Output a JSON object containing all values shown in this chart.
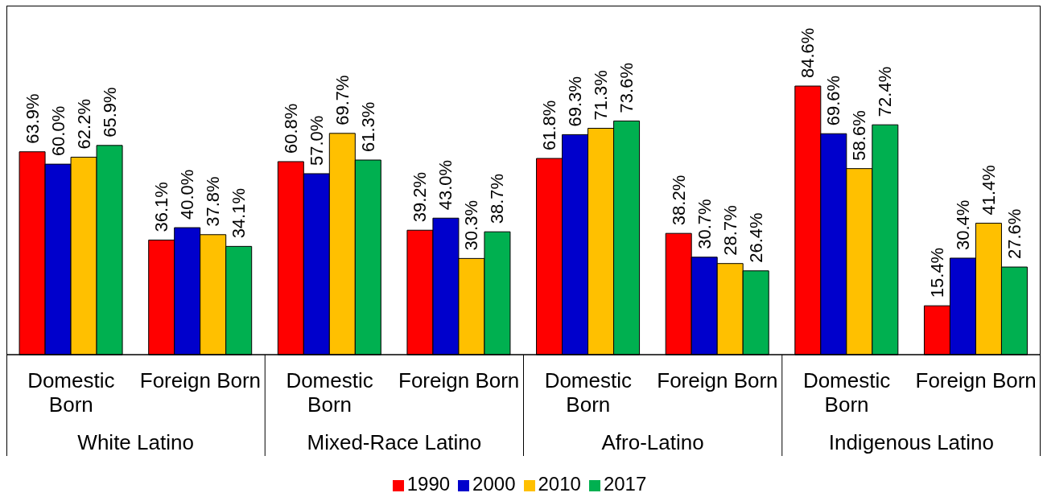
{
  "chart_data": {
    "type": "bar",
    "categories": [
      "Domestic Born",
      "Foreign Born",
      "Domestic Born",
      "Foreign Born",
      "Domestic Born",
      "Foreign Born",
      "Domestic Born",
      "Foreign Born"
    ],
    "series": [
      {
        "name": "1990",
        "color": "#ff0000",
        "values": [
          63.9,
          36.1,
          60.8,
          39.2,
          61.8,
          38.2,
          84.6,
          15.4
        ],
        "value_labels": [
          "63.9%",
          "36.1%",
          "60.8%",
          "39.2%",
          "61.8%",
          "38.2%",
          "84.6%",
          "15.4%"
        ]
      },
      {
        "name": "2000",
        "color": "#0000cc",
        "values": [
          60.0,
          40.0,
          57.0,
          43.0,
          69.3,
          30.7,
          69.6,
          30.4
        ],
        "value_labels": [
          "60.0%",
          "40.0%",
          "57.0%",
          "43.0%",
          "69.3%",
          "30.7%",
          "69.6%",
          "30.4%"
        ]
      },
      {
        "name": "2010",
        "color": "#ffc000",
        "values": [
          62.2,
          37.8,
          69.7,
          30.3,
          71.3,
          28.7,
          58.6,
          41.4
        ],
        "value_labels": [
          "62.2%",
          "37.8%",
          "69.7%",
          "30.3%",
          "71.3%",
          "28.7%",
          "58.6%",
          "41.4%"
        ]
      },
      {
        "name": "2017",
        "color": "#00b050",
        "values": [
          65.9,
          34.1,
          61.3,
          38.7,
          73.6,
          26.4,
          72.4,
          27.6
        ],
        "value_labels": [
          "65.9%",
          "34.1%",
          "61.3%",
          "38.7%",
          "73.6%",
          "26.4%",
          "72.4%",
          "27.6%"
        ]
      }
    ],
    "annotations": [
      "White Latino",
      "Mixed-Race Latino",
      "Afro-Latino",
      "Indigenous Latino"
    ],
    "legend": "bottom"
  }
}
